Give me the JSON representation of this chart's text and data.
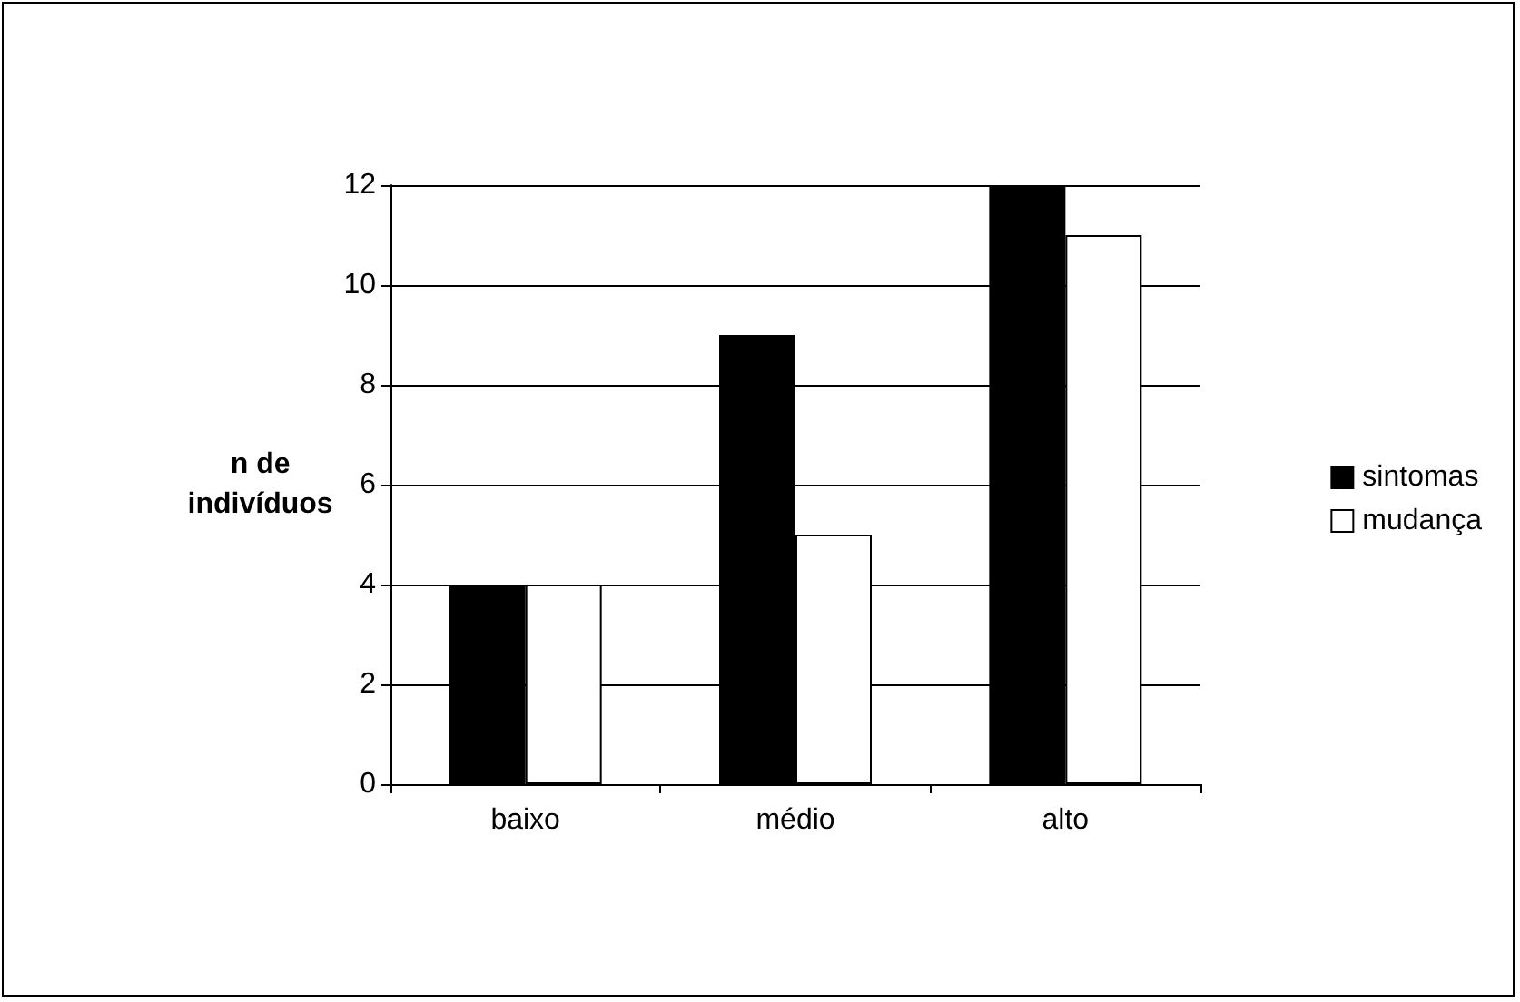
{
  "chart_data": {
    "type": "bar",
    "ylabel": "n de\nindivíduos",
    "categories": [
      "baixo",
      "médio",
      "alto"
    ],
    "series": [
      {
        "name": "sintomas",
        "color": "#000000",
        "values": [
          4,
          9,
          12
        ]
      },
      {
        "name": "mudança",
        "color": "#ffffff",
        "values": [
          4,
          5,
          11
        ]
      }
    ],
    "ylim": [
      0,
      12
    ],
    "yticks": [
      0,
      2,
      4,
      6,
      8,
      10,
      12
    ],
    "grid": "y",
    "legend": "right"
  }
}
